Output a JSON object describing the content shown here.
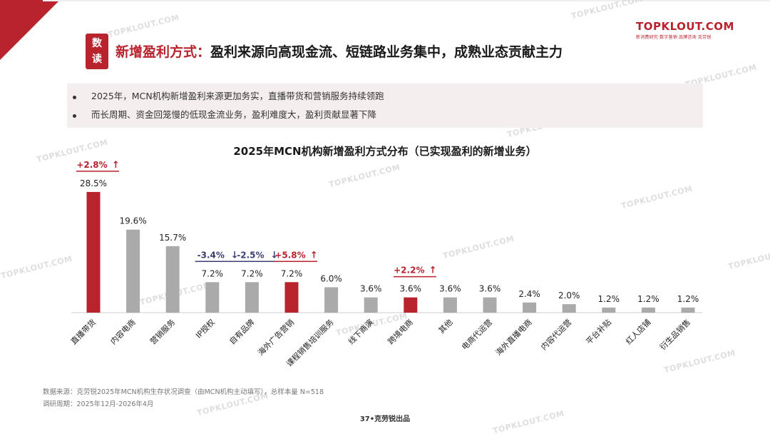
{
  "brand": {
    "name": "TOPKLOUT.COM",
    "sub": "新消费研究·数字营销·品牌咨询 克劳锐"
  },
  "badge": [
    "数",
    "读"
  ],
  "title": {
    "highlight": "新增盈利方式：",
    "rest": "盈利来源向高现金流、短链路业务集中，成熟业态贡献主力"
  },
  "bullets": [
    "2025年，MCN机构新增盈利来源更加务实，直播带货和营销服务持续领跑",
    "而长周期、资金回笼慢的低现金流业务，盈利难度大，盈利贡献显著下降"
  ],
  "watermark": "TOPKLOUT.COM",
  "colors": {
    "accent": "#b8232e",
    "gray": "#aaaaaa",
    "down": "#3b3f74"
  },
  "chart_data": {
    "type": "bar",
    "title": "2025年MCN机构新增盈利方式分布（已实现盈利的新增业务）",
    "categories": [
      "直播带货",
      "内容电商",
      "营销服务",
      "IP授权",
      "自有品牌",
      "海外广告营销",
      "课程销售培训服务",
      "线下商演",
      "跨境电商",
      "其他",
      "电商代运营",
      "海外直播电商",
      "内容代运营",
      "平台补贴",
      "红人店铺",
      "衍生品销售"
    ],
    "values": [
      28.5,
      19.6,
      15.7,
      7.2,
      7.2,
      7.2,
      6.0,
      3.6,
      3.6,
      3.6,
      3.6,
      2.4,
      2.0,
      1.2,
      1.2,
      1.2
    ],
    "value_labels": [
      "28.5%",
      "19.6%",
      "15.7%",
      "7.2%",
      "7.2%",
      "7.2%",
      "6.0%",
      "3.6%",
      "3.6%",
      "3.6%",
      "3.6%",
      "2.4%",
      "2.0%",
      "1.2%",
      "1.2%",
      "1.2%"
    ],
    "highlighted": [
      0,
      5,
      8
    ],
    "changes": [
      {
        "index": 0,
        "label": "+2.8%",
        "arrow": "↑",
        "direction": "up"
      },
      {
        "index": 3,
        "label": "-3.4%",
        "arrow": "↓",
        "direction": "down"
      },
      {
        "index": 4,
        "label": "-2.5%",
        "arrow": "↓",
        "direction": "down"
      },
      {
        "index": 5,
        "label": "+5.8%",
        "arrow": "↑",
        "direction": "up"
      },
      {
        "index": 8,
        "label": "+2.2%",
        "arrow": "↑",
        "direction": "up"
      }
    ],
    "unit": "%",
    "ylim": [
      0,
      30
    ],
    "grid": false,
    "legend": "none"
  },
  "footer": {
    "source": "数据来源：克劳锐2025年MCN机构生存状况调查（由MCN机构主动填写），总样本量 N=518",
    "period": "调研周期：2025年12月-2026年4月",
    "page": "37•克劳锐出品"
  }
}
